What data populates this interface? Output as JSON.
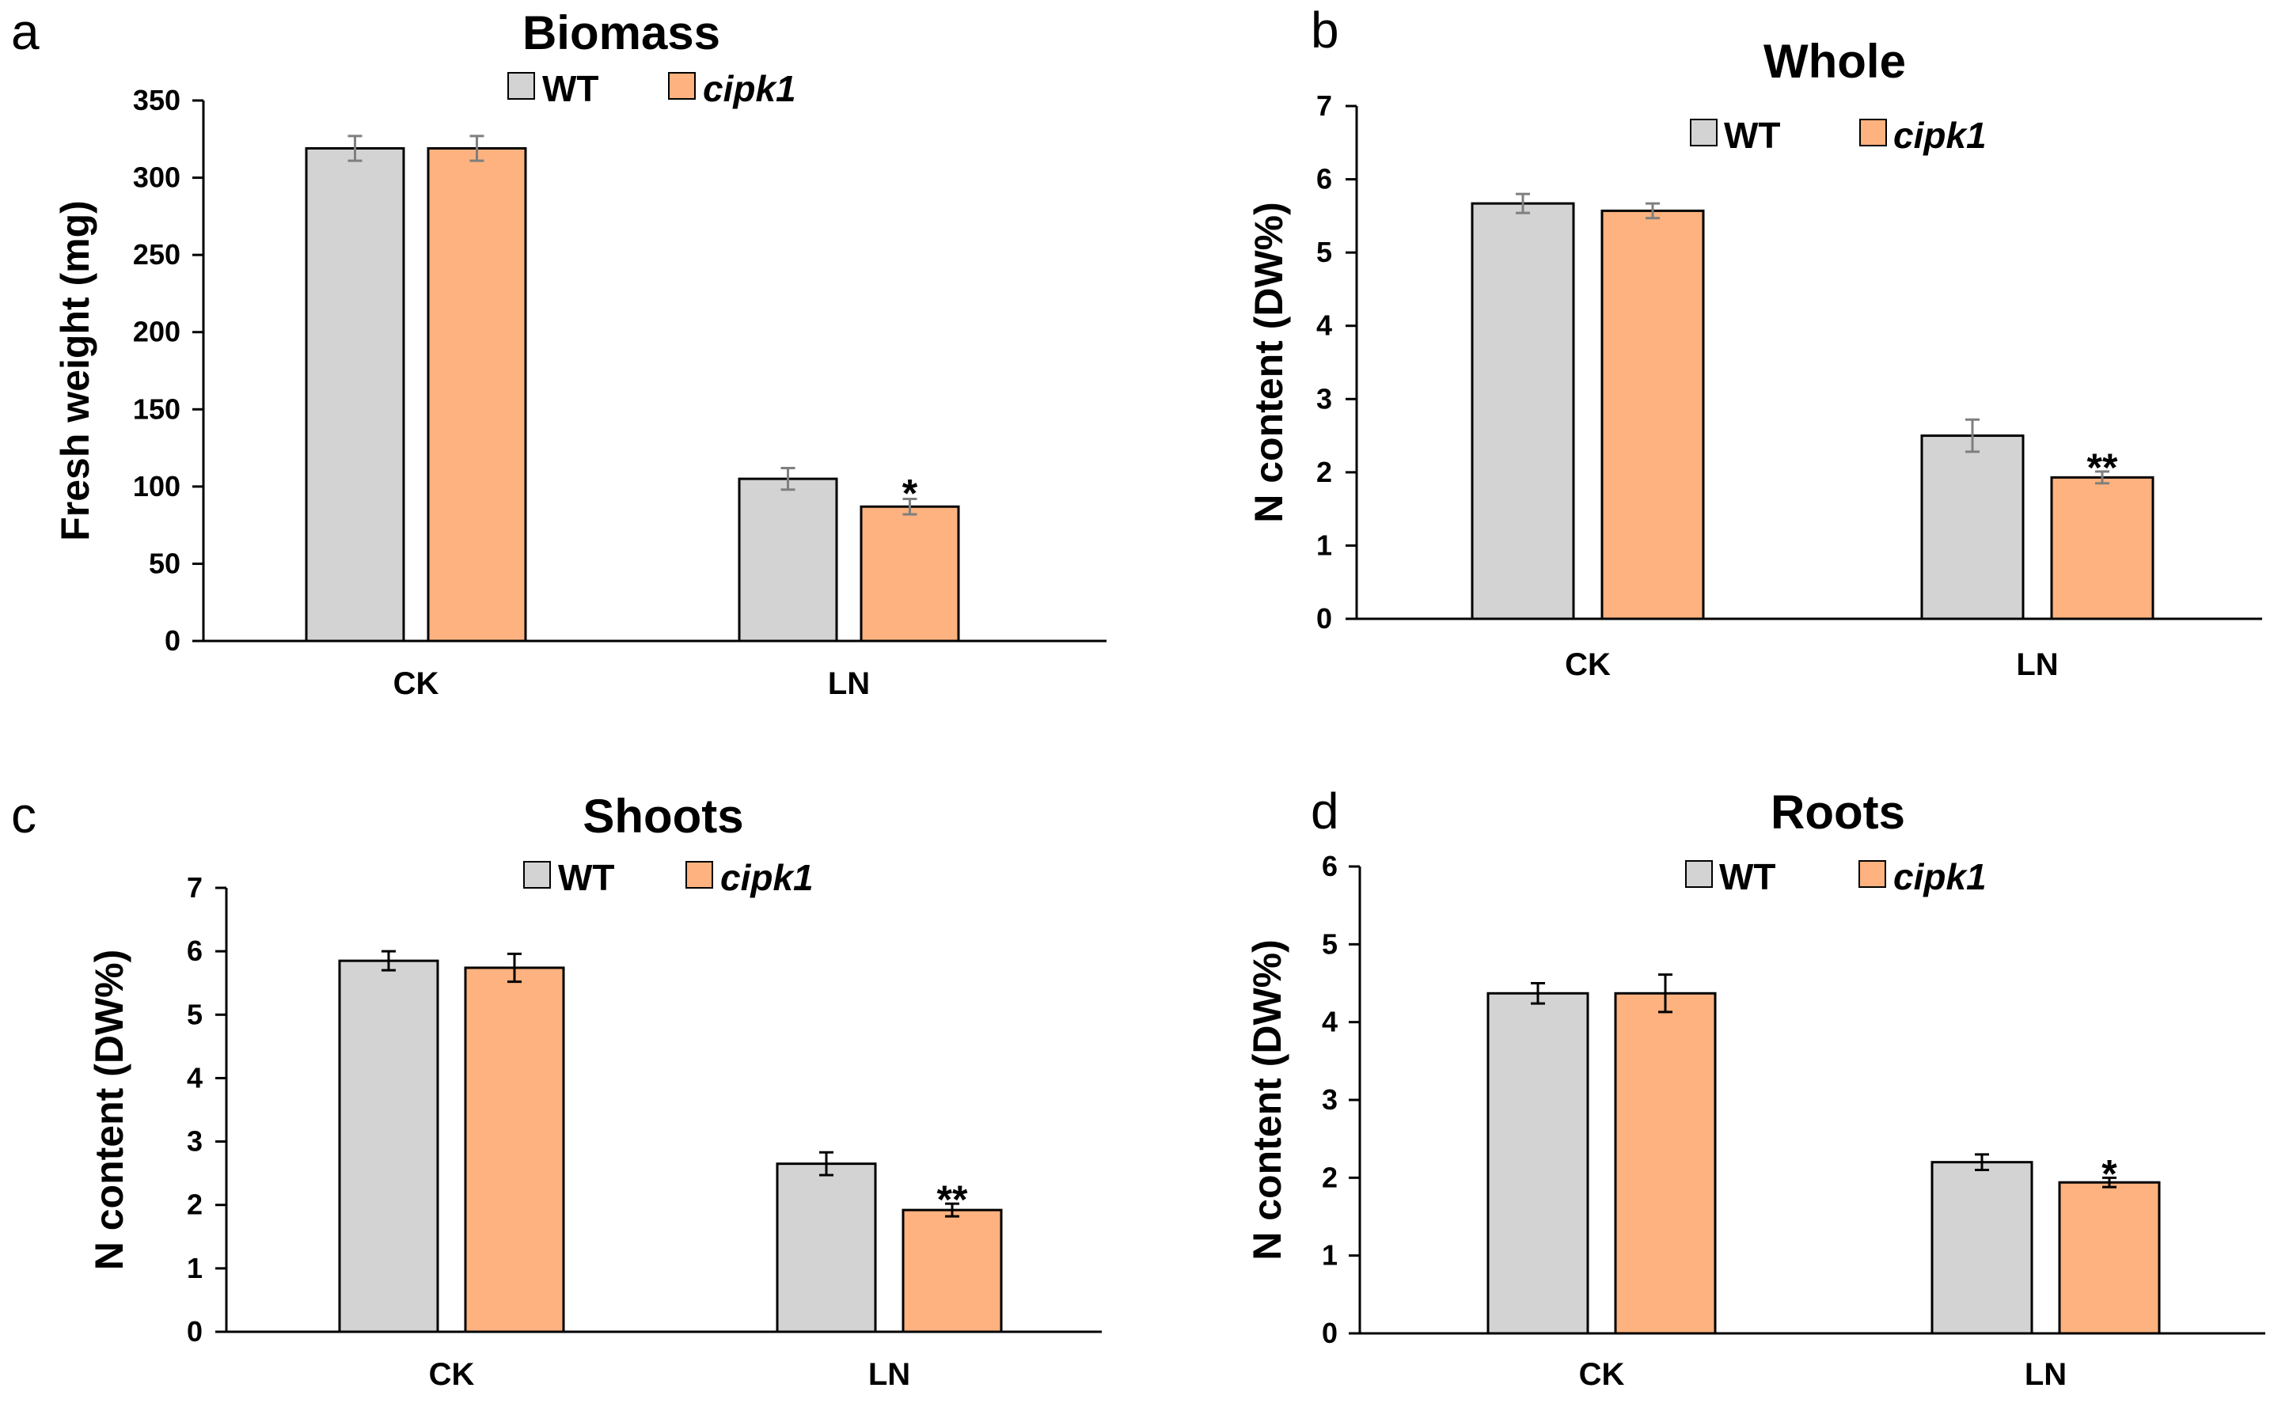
{
  "colors": {
    "wt": "#d3d3d3",
    "cipk1": "#fdb27f",
    "axis": "#000000",
    "error_bar_a": "#7f7f7f",
    "error_bar": "#000000"
  },
  "chart_data": [
    {
      "panel": "a",
      "type": "bar",
      "title": "Biomass",
      "ylabel": "Fresh weight (mg)",
      "xlabel": "",
      "ylim": [
        0,
        350
      ],
      "yticks": [
        0,
        50,
        100,
        150,
        200,
        250,
        300,
        350
      ],
      "categories": [
        "CK",
        "LN"
      ],
      "legend": [
        "WT",
        "cipk1"
      ],
      "legend_position": "top-center",
      "grid": false,
      "series": [
        {
          "name": "WT",
          "values": [
            319,
            105
          ],
          "errors": [
            8,
            7
          ],
          "significance": [
            "",
            ""
          ]
        },
        {
          "name": "cipk1",
          "values": [
            319,
            87
          ],
          "errors": [
            8,
            5
          ],
          "significance": [
            "",
            "*"
          ]
        }
      ]
    },
    {
      "panel": "b",
      "type": "bar",
      "title": "Whole",
      "ylabel": "N content (DW%)",
      "xlabel": "",
      "ylim": [
        0,
        7
      ],
      "yticks": [
        0,
        1,
        2,
        3,
        4,
        5,
        6,
        7
      ],
      "categories": [
        "CK",
        "LN"
      ],
      "legend": [
        "WT",
        "cipk1"
      ],
      "legend_position": "top-center",
      "grid": false,
      "series": [
        {
          "name": "WT",
          "values": [
            5.67,
            2.5
          ],
          "errors": [
            0.13,
            0.22
          ],
          "significance": [
            "",
            ""
          ]
        },
        {
          "name": "cipk1",
          "values": [
            5.57,
            1.93
          ],
          "errors": [
            0.1,
            0.08
          ],
          "significance": [
            "",
            "**"
          ]
        }
      ]
    },
    {
      "panel": "c",
      "type": "bar",
      "title": "Shoots",
      "ylabel": "N content (DW%)",
      "xlabel": "",
      "ylim": [
        0,
        7
      ],
      "yticks": [
        0,
        1,
        2,
        3,
        4,
        5,
        6,
        7
      ],
      "categories": [
        "CK",
        "LN"
      ],
      "legend": [
        "WT",
        "cipk1"
      ],
      "legend_position": "top-center",
      "grid": false,
      "series": [
        {
          "name": "WT",
          "values": [
            5.85,
            2.65
          ],
          "errors": [
            0.15,
            0.18
          ],
          "significance": [
            "",
            ""
          ]
        },
        {
          "name": "cipk1",
          "values": [
            5.74,
            1.92
          ],
          "errors": [
            0.22,
            0.1
          ],
          "significance": [
            "",
            "**"
          ]
        }
      ]
    },
    {
      "panel": "d",
      "type": "bar",
      "title": "Roots",
      "ylabel": "N content (DW%)",
      "xlabel": "",
      "ylim": [
        0,
        6
      ],
      "yticks": [
        0,
        1,
        2,
        3,
        4,
        5,
        6
      ],
      "categories": [
        "CK",
        "LN"
      ],
      "legend": [
        "WT",
        "cipk1"
      ],
      "legend_position": "top-center",
      "grid": false,
      "series": [
        {
          "name": "WT",
          "values": [
            4.37,
            2.2
          ],
          "errors": [
            0.13,
            0.1
          ],
          "significance": [
            "",
            ""
          ]
        },
        {
          "name": "cipk1",
          "values": [
            4.37,
            1.94
          ],
          "errors": [
            0.24,
            0.06
          ],
          "significance": [
            "",
            "*"
          ]
        }
      ]
    }
  ]
}
